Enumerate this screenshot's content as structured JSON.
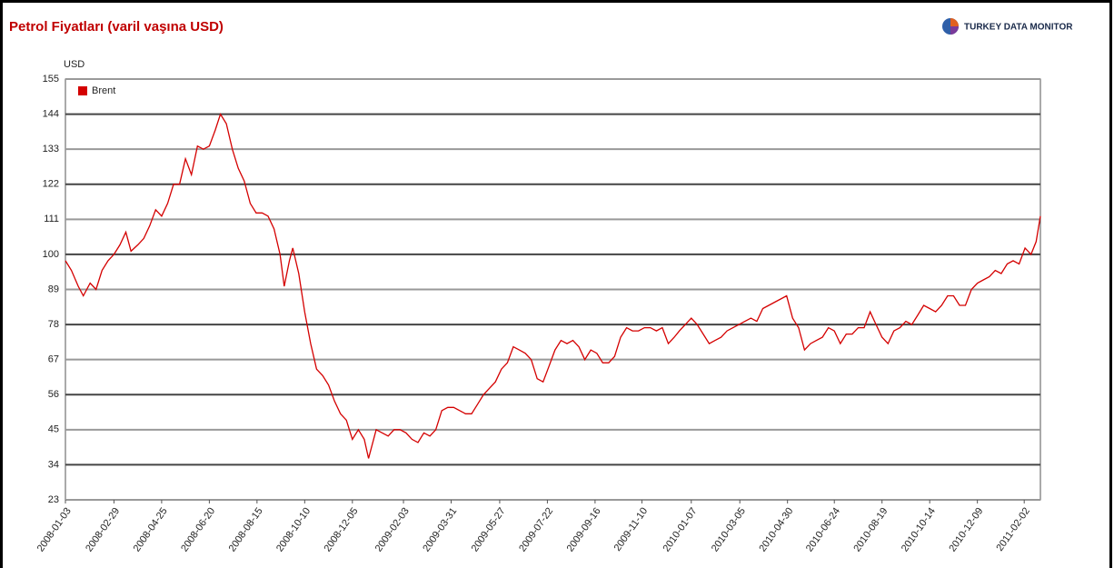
{
  "header": {
    "brand": "TURKEY DATA MONITOR"
  },
  "chart_data": {
    "type": "line",
    "title": "Petrol Fiyatları (varil vaşına USD)",
    "ylabel": "USD",
    "x": [
      "2008-01-03",
      "2008-01-10",
      "2008-01-18",
      "2008-01-24",
      "2008-02-01",
      "2008-02-08",
      "2008-02-15",
      "2008-02-22",
      "2008-02-29",
      "2008-03-07",
      "2008-03-14",
      "2008-03-20",
      "2008-03-28",
      "2008-04-04",
      "2008-04-11",
      "2008-04-18",
      "2008-04-25",
      "2008-05-02",
      "2008-05-09",
      "2008-05-16",
      "2008-05-23",
      "2008-05-30",
      "2008-06-06",
      "2008-06-13",
      "2008-06-20",
      "2008-06-27",
      "2008-07-03",
      "2008-07-10",
      "2008-07-17",
      "2008-07-24",
      "2008-07-31",
      "2008-08-07",
      "2008-08-14",
      "2008-08-21",
      "2008-08-28",
      "2008-09-04",
      "2008-09-11",
      "2008-09-16",
      "2008-09-22",
      "2008-09-26",
      "2008-10-03",
      "2008-10-10",
      "2008-10-17",
      "2008-10-24",
      "2008-10-31",
      "2008-11-07",
      "2008-11-14",
      "2008-11-21",
      "2008-11-28",
      "2008-12-05",
      "2008-12-12",
      "2008-12-19",
      "2008-12-24",
      "2009-01-02",
      "2009-01-09",
      "2009-01-16",
      "2009-01-23",
      "2009-01-30",
      "2009-02-06",
      "2009-02-13",
      "2009-02-20",
      "2009-02-27",
      "2009-03-06",
      "2009-03-13",
      "2009-03-20",
      "2009-03-27",
      "2009-04-03",
      "2009-04-10",
      "2009-04-17",
      "2009-04-24",
      "2009-05-01",
      "2009-05-08",
      "2009-05-15",
      "2009-05-22",
      "2009-05-29",
      "2009-06-05",
      "2009-06-12",
      "2009-06-19",
      "2009-06-26",
      "2009-07-03",
      "2009-07-10",
      "2009-07-17",
      "2009-07-24",
      "2009-07-31",
      "2009-08-07",
      "2009-08-14",
      "2009-08-21",
      "2009-08-28",
      "2009-09-04",
      "2009-09-11",
      "2009-09-18",
      "2009-09-25",
      "2009-10-02",
      "2009-10-09",
      "2009-10-16",
      "2009-10-23",
      "2009-10-30",
      "2009-11-06",
      "2009-11-13",
      "2009-11-20",
      "2009-11-27",
      "2009-12-04",
      "2009-12-11",
      "2009-12-18",
      "2009-12-24",
      "2010-01-07",
      "2010-01-14",
      "2010-01-21",
      "2010-01-28",
      "2010-02-04",
      "2010-02-11",
      "2010-02-18",
      "2010-02-25",
      "2010-03-04",
      "2010-03-11",
      "2010-03-18",
      "2010-03-25",
      "2010-04-01",
      "2010-04-08",
      "2010-04-15",
      "2010-04-22",
      "2010-04-29",
      "2010-05-06",
      "2010-05-13",
      "2010-05-20",
      "2010-05-27",
      "2010-06-03",
      "2010-06-10",
      "2010-06-17",
      "2010-06-24",
      "2010-07-01",
      "2010-07-08",
      "2010-07-15",
      "2010-07-22",
      "2010-07-29",
      "2010-08-05",
      "2010-08-12",
      "2010-08-19",
      "2010-08-26",
      "2010-09-02",
      "2010-09-09",
      "2010-09-16",
      "2010-09-23",
      "2010-09-30",
      "2010-10-07",
      "2010-10-14",
      "2010-10-21",
      "2010-10-28",
      "2010-11-04",
      "2010-11-11",
      "2010-11-18",
      "2010-11-25",
      "2010-12-02",
      "2010-12-09",
      "2010-12-16",
      "2010-12-23",
      "2010-12-30",
      "2011-01-06",
      "2011-01-13",
      "2011-01-20",
      "2011-01-27",
      "2011-02-03",
      "2011-02-10",
      "2011-02-16",
      "2011-02-21"
    ],
    "series": [
      {
        "name": "Brent",
        "color": "#d40000",
        "values": [
          98,
          95,
          90,
          87,
          91,
          89,
          95,
          98,
          100,
          103,
          107,
          101,
          103,
          105,
          109,
          114,
          112,
          116,
          122,
          122,
          130,
          125,
          134,
          133,
          134,
          139,
          144,
          141,
          133,
          127,
          123,
          116,
          113,
          113,
          112,
          108,
          100,
          90,
          98,
          102,
          94,
          82,
          72,
          64,
          62,
          59,
          54,
          50,
          48,
          42,
          45,
          42,
          36,
          45,
          44,
          43,
          45,
          45,
          44,
          42,
          41,
          44,
          43,
          45,
          51,
          52,
          52,
          51,
          50,
          50,
          53,
          56,
          58,
          60,
          64,
          66,
          71,
          70,
          69,
          67,
          61,
          60,
          65,
          70,
          73,
          72,
          73,
          71,
          67,
          70,
          69,
          66,
          66,
          68,
          74,
          77,
          76,
          76,
          77,
          77,
          76,
          77,
          72,
          74,
          76,
          80,
          78,
          75,
          72,
          73,
          74,
          76,
          77,
          78,
          79,
          80,
          79,
          83,
          84,
          85,
          86,
          87,
          80,
          77,
          70,
          72,
          73,
          74,
          77,
          76,
          72,
          75,
          75,
          77,
          77,
          82,
          78,
          74,
          72,
          76,
          77,
          79,
          78,
          81,
          84,
          83,
          82,
          84,
          87,
          87,
          84,
          84,
          89,
          91,
          92,
          93,
          95,
          94,
          97,
          98,
          97,
          102,
          100,
          104,
          112
        ]
      }
    ],
    "xlim": [
      "2008-01-03",
      "2011-02-21"
    ],
    "xticks": [
      "2008-01-03",
      "2008-02-29",
      "2008-04-25",
      "2008-06-20",
      "2008-08-15",
      "2008-10-10",
      "2008-12-05",
      "2009-02-03",
      "2009-03-31",
      "2009-05-27",
      "2009-07-22",
      "2009-09-16",
      "2009-11-10",
      "2010-01-07",
      "2010-03-05",
      "2010-04-30",
      "2010-06-24",
      "2010-08-19",
      "2010-10-14",
      "2010-12-09",
      "2011-02-02"
    ],
    "ylim": [
      23,
      155
    ],
    "yticks": [
      23,
      34,
      45,
      56,
      67,
      78,
      89,
      100,
      111,
      122,
      133,
      144,
      155
    ],
    "grid": true,
    "legend": "upper left"
  }
}
